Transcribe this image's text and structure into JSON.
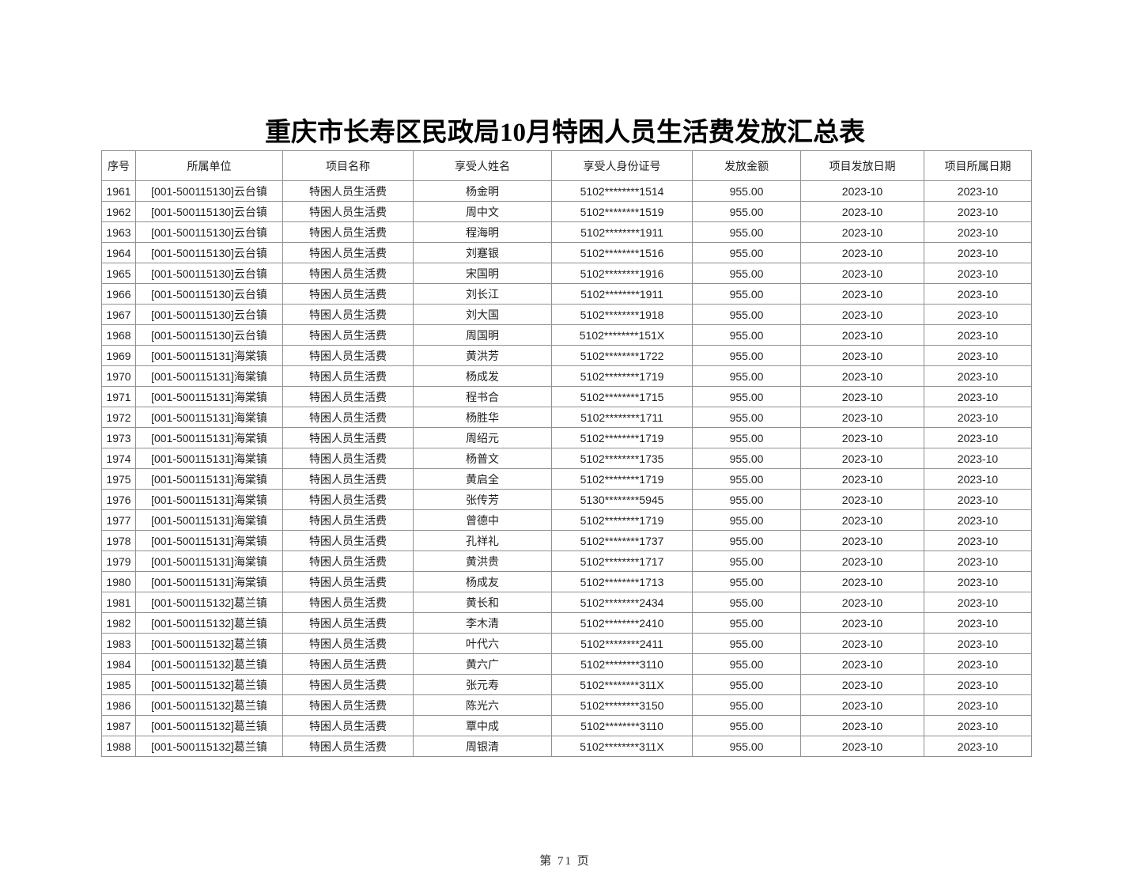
{
  "page": {
    "title": "重庆市长寿区民政局10月特困人员生活费发放汇总表",
    "footer": "第 71 页",
    "text_color": "#1f1f1f",
    "border_color": "#919191",
    "background_color": "#ffffff"
  },
  "table": {
    "headers": [
      "序号",
      "所属单位",
      "项目名称",
      "享受人姓名",
      "享受人身份证号",
      "发放金额",
      "项目发放日期",
      "项目所属日期"
    ],
    "rows": [
      [
        "1961",
        "[001-500115130]云台镇",
        "特困人员生活费",
        "杨金明",
        "5102********1514",
        "955.00",
        "2023-10",
        "2023-10"
      ],
      [
        "1962",
        "[001-500115130]云台镇",
        "特困人员生活费",
        "周中文",
        "5102********1519",
        "955.00",
        "2023-10",
        "2023-10"
      ],
      [
        "1963",
        "[001-500115130]云台镇",
        "特困人员生活费",
        "程海明",
        "5102********1911",
        "955.00",
        "2023-10",
        "2023-10"
      ],
      [
        "1964",
        "[001-500115130]云台镇",
        "特困人员生活费",
        "刘蹇银",
        "5102********1516",
        "955.00",
        "2023-10",
        "2023-10"
      ],
      [
        "1965",
        "[001-500115130]云台镇",
        "特困人员生活费",
        "宋国明",
        "5102********1916",
        "955.00",
        "2023-10",
        "2023-10"
      ],
      [
        "1966",
        "[001-500115130]云台镇",
        "特困人员生活费",
        "刘长江",
        "5102********1911",
        "955.00",
        "2023-10",
        "2023-10"
      ],
      [
        "1967",
        "[001-500115130]云台镇",
        "特困人员生活费",
        "刘大国",
        "5102********1918",
        "955.00",
        "2023-10",
        "2023-10"
      ],
      [
        "1968",
        "[001-500115130]云台镇",
        "特困人员生活费",
        "周国明",
        "5102********151X",
        "955.00",
        "2023-10",
        "2023-10"
      ],
      [
        "1969",
        "[001-500115131]海棠镇",
        "特困人员生活费",
        "黄洪芳",
        "5102********1722",
        "955.00",
        "2023-10",
        "2023-10"
      ],
      [
        "1970",
        "[001-500115131]海棠镇",
        "特困人员生活费",
        "杨成发",
        "5102********1719",
        "955.00",
        "2023-10",
        "2023-10"
      ],
      [
        "1971",
        "[001-500115131]海棠镇",
        "特困人员生活费",
        "程书合",
        "5102********1715",
        "955.00",
        "2023-10",
        "2023-10"
      ],
      [
        "1972",
        "[001-500115131]海棠镇",
        "特困人员生活费",
        "杨胜华",
        "5102********1711",
        "955.00",
        "2023-10",
        "2023-10"
      ],
      [
        "1973",
        "[001-500115131]海棠镇",
        "特困人员生活费",
        "周绍元",
        "5102********1719",
        "955.00",
        "2023-10",
        "2023-10"
      ],
      [
        "1974",
        "[001-500115131]海棠镇",
        "特困人员生活费",
        "杨普文",
        "5102********1735",
        "955.00",
        "2023-10",
        "2023-10"
      ],
      [
        "1975",
        "[001-500115131]海棠镇",
        "特困人员生活费",
        "黄启全",
        "5102********1719",
        "955.00",
        "2023-10",
        "2023-10"
      ],
      [
        "1976",
        "[001-500115131]海棠镇",
        "特困人员生活费",
        "张传芳",
        "5130********5945",
        "955.00",
        "2023-10",
        "2023-10"
      ],
      [
        "1977",
        "[001-500115131]海棠镇",
        "特困人员生活费",
        "曾德中",
        "5102********1719",
        "955.00",
        "2023-10",
        "2023-10"
      ],
      [
        "1978",
        "[001-500115131]海棠镇",
        "特困人员生活费",
        "孔祥礼",
        "5102********1737",
        "955.00",
        "2023-10",
        "2023-10"
      ],
      [
        "1979",
        "[001-500115131]海棠镇",
        "特困人员生活费",
        "黄洪贵",
        "5102********1717",
        "955.00",
        "2023-10",
        "2023-10"
      ],
      [
        "1980",
        "[001-500115131]海棠镇",
        "特困人员生活费",
        "杨成友",
        "5102********1713",
        "955.00",
        "2023-10",
        "2023-10"
      ],
      [
        "1981",
        "[001-500115132]葛兰镇",
        "特困人员生活费",
        "黄长和",
        "5102********2434",
        "955.00",
        "2023-10",
        "2023-10"
      ],
      [
        "1982",
        "[001-500115132]葛兰镇",
        "特困人员生活费",
        "李木清",
        "5102********2410",
        "955.00",
        "2023-10",
        "2023-10"
      ],
      [
        "1983",
        "[001-500115132]葛兰镇",
        "特困人员生活费",
        "叶代六",
        "5102********2411",
        "955.00",
        "2023-10",
        "2023-10"
      ],
      [
        "1984",
        "[001-500115132]葛兰镇",
        "特困人员生活费",
        "黄六广",
        "5102********3110",
        "955.00",
        "2023-10",
        "2023-10"
      ],
      [
        "1985",
        "[001-500115132]葛兰镇",
        "特困人员生活费",
        "张元寿",
        "5102********311X",
        "955.00",
        "2023-10",
        "2023-10"
      ],
      [
        "1986",
        "[001-500115132]葛兰镇",
        "特困人员生活费",
        "陈光六",
        "5102********3150",
        "955.00",
        "2023-10",
        "2023-10"
      ],
      [
        "1987",
        "[001-500115132]葛兰镇",
        "特困人员生活费",
        "覃中成",
        "5102********3110",
        "955.00",
        "2023-10",
        "2023-10"
      ],
      [
        "1988",
        "[001-500115132]葛兰镇",
        "特困人员生活费",
        "周银清",
        "5102********311X",
        "955.00",
        "2023-10",
        "2023-10"
      ]
    ]
  }
}
